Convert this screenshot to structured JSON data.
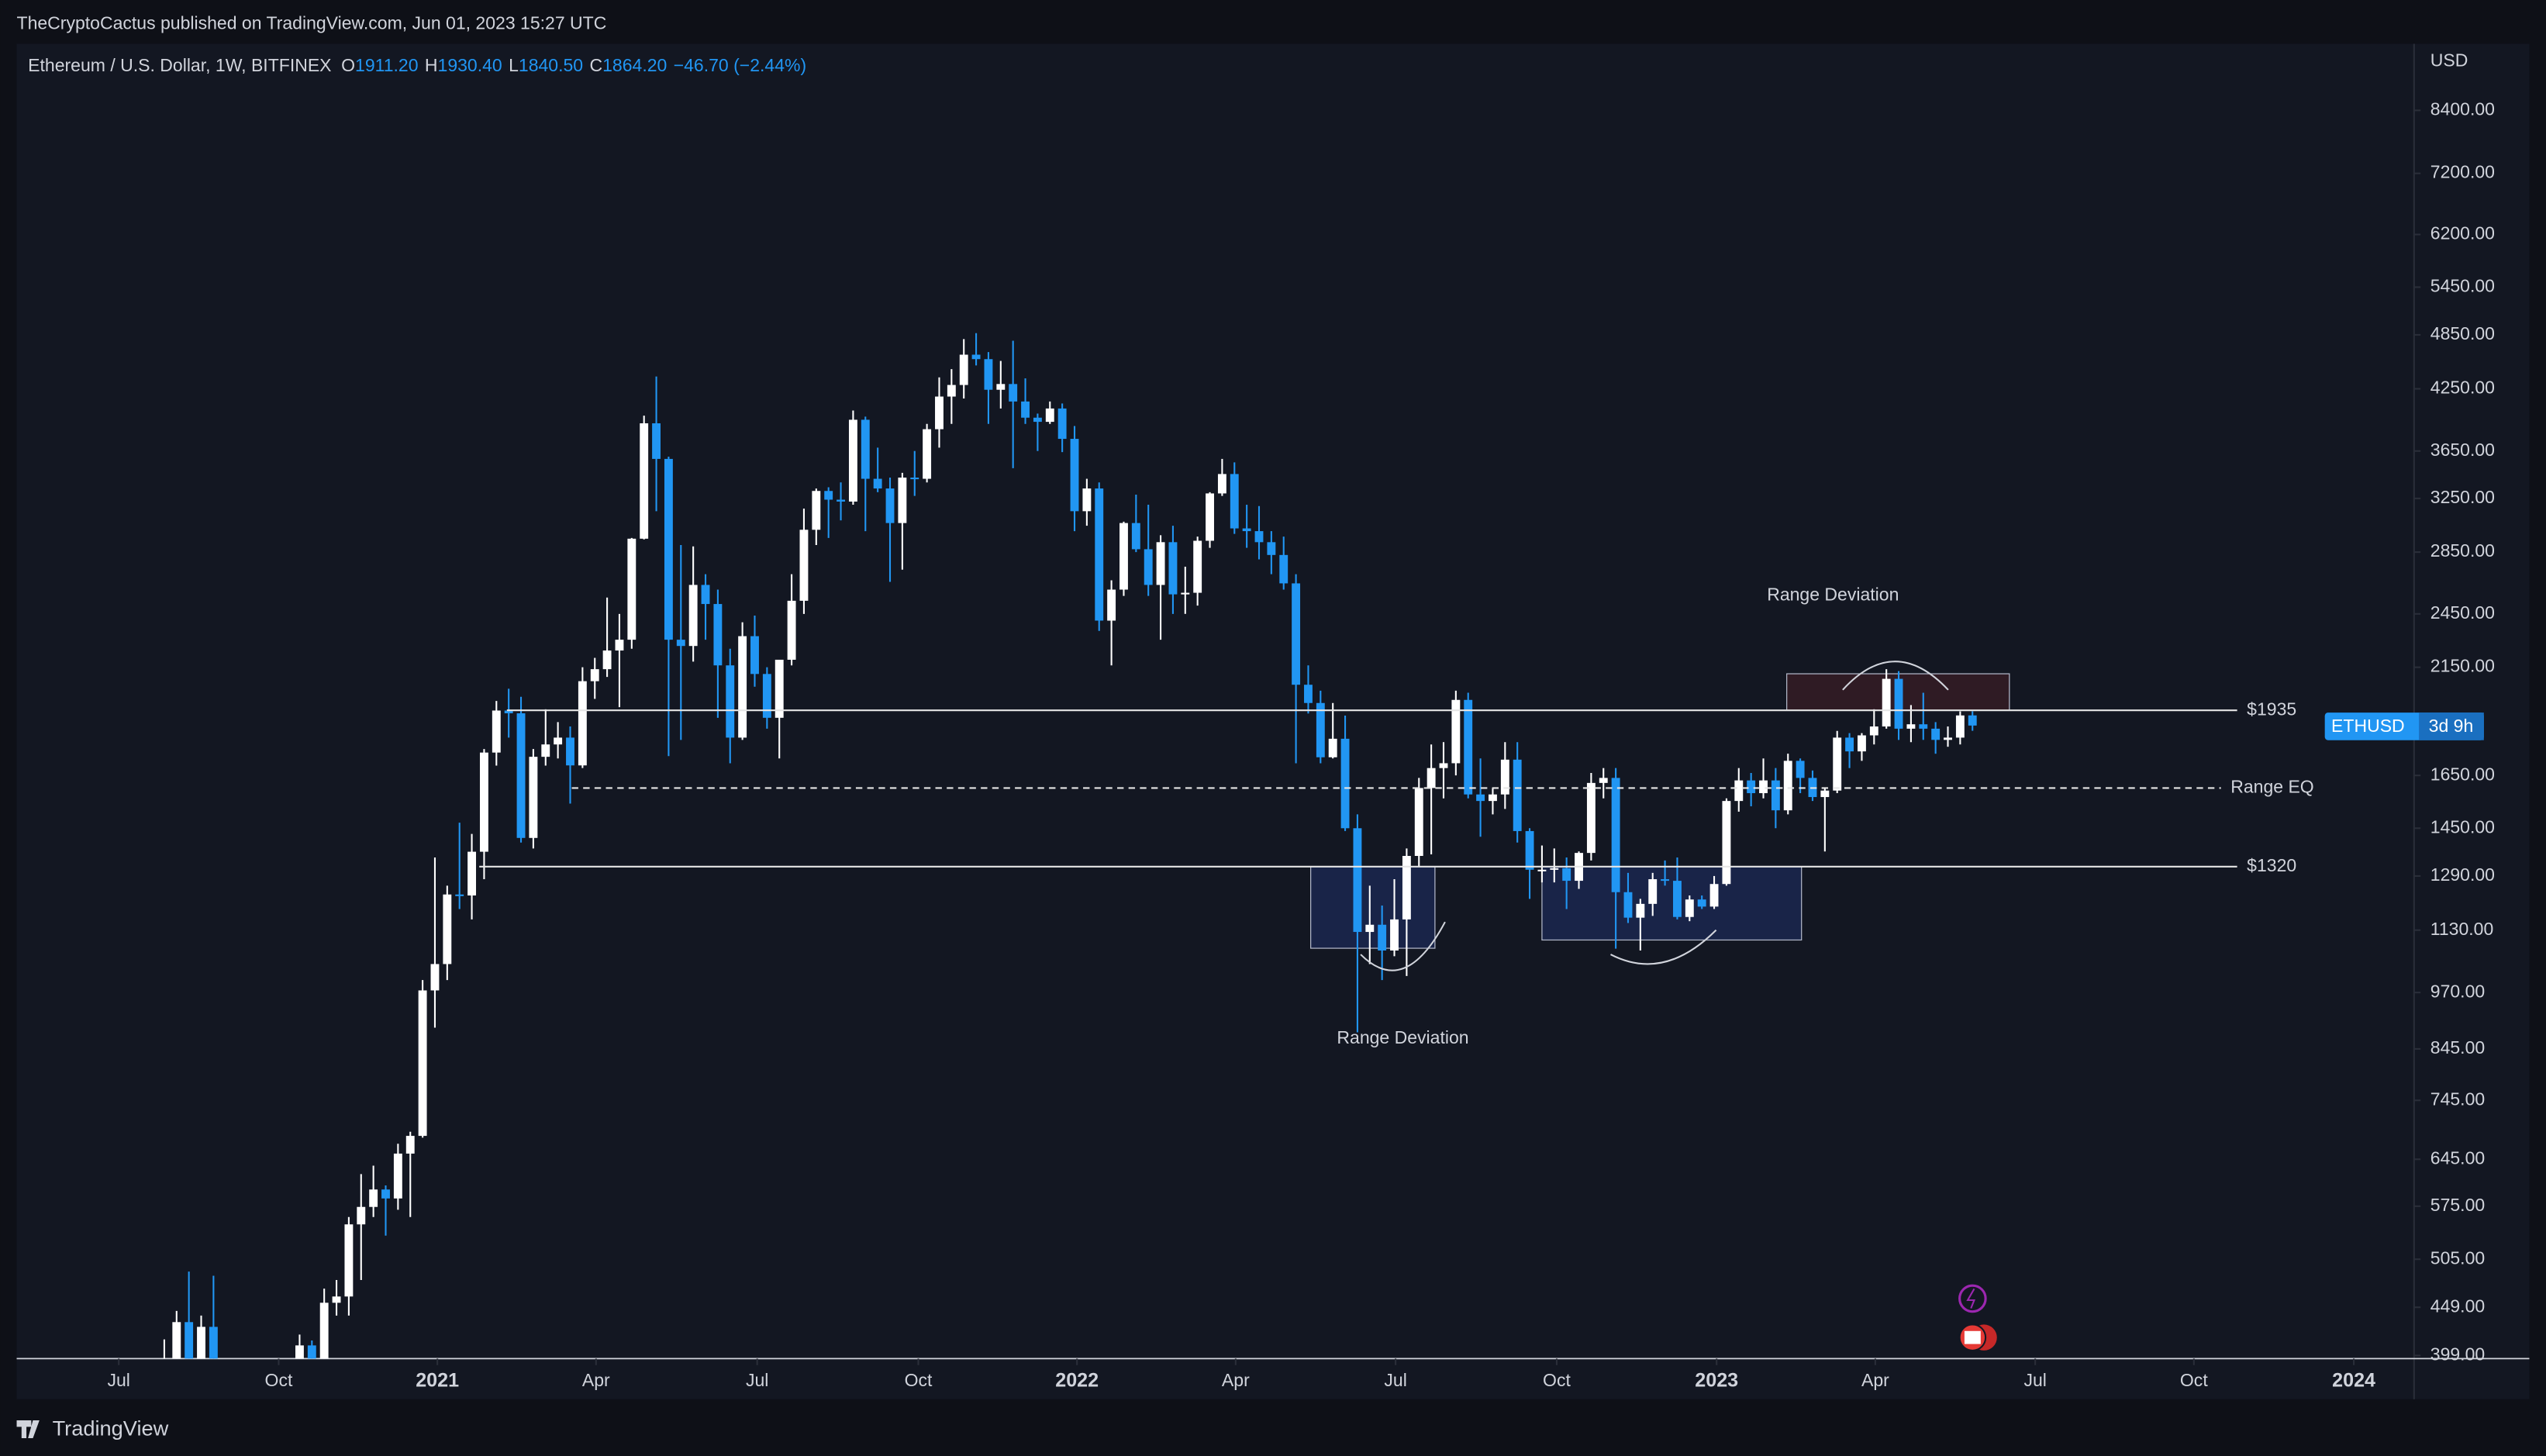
{
  "header": {
    "attribution": "TheCryptoCactus published on TradingView.com, Jun 01, 2023 15:27 UTC",
    "symbol": "Ethereum / U.S. Dollar, 1W, BITFINEX",
    "ohlc": [
      {
        "label": "O",
        "value": "1911.20"
      },
      {
        "label": "H",
        "value": "1930.40"
      },
      {
        "label": "L",
        "value": "1840.50"
      },
      {
        "label": "C",
        "value": "1864.20"
      }
    ],
    "change": "−46.70 (−2.44%)"
  },
  "chart_data": {
    "type": "candlestick",
    "currency": "USD",
    "up_color": "#ffffff",
    "down_color": "#2196f3",
    "log_scale": true,
    "xlim": [
      -12,
      182.9
    ],
    "ylim": [
      396,
      9886
    ],
    "xticks": [
      {
        "value": -3.7,
        "label": "Jul"
      },
      {
        "value": 9.3,
        "label": "Oct"
      },
      {
        "value": 22.2,
        "label": "2021"
      },
      {
        "value": 35.1,
        "label": "Apr"
      },
      {
        "value": 48.2,
        "label": "Jul"
      },
      {
        "value": 61.3,
        "label": "Oct"
      },
      {
        "value": 74.2,
        "label": "2022"
      },
      {
        "value": 87.1,
        "label": "Apr"
      },
      {
        "value": 100.1,
        "label": "Jul"
      },
      {
        "value": 113.2,
        "label": "Oct"
      },
      {
        "value": 126.2,
        "label": "2023"
      },
      {
        "value": 139.1,
        "label": "Apr"
      },
      {
        "value": 152.1,
        "label": "Jul"
      },
      {
        "value": 165.0,
        "label": "Oct"
      },
      {
        "value": 178.0,
        "label": "2024"
      }
    ],
    "yticks": [
      {
        "value": 8400,
        "label": "8400.00"
      },
      {
        "value": 7200,
        "label": "7200.00"
      },
      {
        "value": 6200,
        "label": "6200.00"
      },
      {
        "value": 5450,
        "label": "5450.00"
      },
      {
        "value": 4850,
        "label": "4850.00"
      },
      {
        "value": 4250,
        "label": "4250.00"
      },
      {
        "value": 3650,
        "label": "3650.00"
      },
      {
        "value": 3250,
        "label": "3250.00"
      },
      {
        "value": 2850,
        "label": "2850.00"
      },
      {
        "value": 2450,
        "label": "2450.00"
      },
      {
        "value": 2150,
        "label": "2150.00"
      },
      {
        "value": 1650,
        "label": "1650.00"
      },
      {
        "value": 1450,
        "label": "1450.00"
      },
      {
        "value": 1290,
        "label": "1290.00"
      },
      {
        "value": 1130,
        "label": "1130.00"
      },
      {
        "value": 970,
        "label": "970.00"
      },
      {
        "value": 845,
        "label": "845.00"
      },
      {
        "value": 745,
        "label": "745.00"
      },
      {
        "value": 645,
        "label": "645.00"
      },
      {
        "value": 575,
        "label": "575.00"
      },
      {
        "value": 505,
        "label": "505.00"
      },
      {
        "value": 449,
        "label": "449.00"
      },
      {
        "value": 399,
        "label": "399.00"
      }
    ],
    "x": [
      0,
      1,
      2,
      3,
      4,
      5,
      6,
      7,
      8,
      9,
      10,
      11,
      12,
      13,
      14,
      15,
      16,
      17,
      18,
      19,
      20,
      21,
      22,
      23,
      24,
      25,
      26,
      27,
      28,
      29,
      30,
      31,
      32,
      33,
      34,
      35,
      36,
      37,
      38,
      39,
      40,
      41,
      42,
      43,
      44,
      45,
      46,
      47,
      48,
      49,
      50,
      51,
      52,
      53,
      54,
      55,
      56,
      57,
      58,
      59,
      60,
      61,
      62,
      63,
      64,
      65,
      66,
      67,
      68,
      69,
      70,
      71,
      72,
      73,
      74,
      75,
      76,
      77,
      78,
      79,
      80,
      81,
      82,
      83,
      84,
      85,
      86,
      87,
      88,
      89,
      90,
      91,
      92,
      93,
      94,
      95,
      96,
      97,
      98,
      99,
      100,
      101,
      102,
      103,
      104,
      105,
      106,
      107,
      108,
      109,
      110,
      111,
      112,
      113,
      114,
      115,
      116,
      117,
      118,
      119,
      120,
      121,
      122,
      123,
      124,
      125,
      126,
      127,
      128,
      129,
      130,
      131,
      132,
      133,
      134,
      135,
      136,
      137,
      138,
      139,
      140,
      141,
      142,
      143,
      144,
      145,
      146,
      147
    ],
    "ohlc": [
      [
        386,
        415,
        365,
        395
      ],
      [
        395,
        445,
        370,
        433
      ],
      [
        433,
        490,
        375,
        387
      ],
      [
        387,
        440,
        370,
        428
      ],
      [
        428,
        485,
        310,
        353
      ],
      [
        353,
        385,
        330,
        365
      ],
      [
        365,
        395,
        355,
        384
      ],
      [
        384,
        392,
        310,
        354
      ],
      [
        354,
        362,
        335,
        353
      ],
      [
        353,
        375,
        332,
        369
      ],
      [
        369,
        395,
        360,
        367
      ],
      [
        367,
        420,
        363,
        409
      ],
      [
        409,
        414,
        370,
        387
      ],
      [
        387,
        470,
        374,
        454
      ],
      [
        454,
        480,
        440,
        461
      ],
      [
        461,
        560,
        440,
        550
      ],
      [
        550,
        622,
        480,
        574
      ],
      [
        574,
        635,
        560,
        599
      ],
      [
        599,
        605,
        535,
        586
      ],
      [
        586,
        670,
        570,
        654
      ],
      [
        654,
        690,
        560,
        683
      ],
      [
        683,
        1000,
        680,
        975
      ],
      [
        975,
        1350,
        890,
        1040
      ],
      [
        1040,
        1260,
        1000,
        1233
      ],
      [
        1233,
        1470,
        1190,
        1230
      ],
      [
        1230,
        1430,
        1160,
        1369
      ],
      [
        1369,
        1760,
        1280,
        1745
      ],
      [
        1745,
        1980,
        1690,
        1934
      ],
      [
        1934,
        2040,
        1810,
        1921
      ],
      [
        1921,
        2000,
        1400,
        1416
      ],
      [
        1416,
        1760,
        1380,
        1727
      ],
      [
        1727,
        1940,
        1690,
        1780
      ],
      [
        1780,
        1880,
        1720,
        1810
      ],
      [
        1810,
        1860,
        1540,
        1691
      ],
      [
        1691,
        2150,
        1680,
        2078
      ],
      [
        2078,
        2200,
        1990,
        2140
      ],
      [
        2140,
        2550,
        2100,
        2240
      ],
      [
        2240,
        2450,
        1950,
        2300
      ],
      [
        2300,
        2950,
        2250,
        2945
      ],
      [
        2945,
        3980,
        2940,
        3906
      ],
      [
        3906,
        4380,
        3150,
        3580
      ],
      [
        3580,
        3600,
        1730,
        2300
      ],
      [
        2300,
        2900,
        1800,
        2265
      ],
      [
        2265,
        2890,
        2180,
        2630
      ],
      [
        2630,
        2700,
        2300,
        2510
      ],
      [
        2510,
        2600,
        1900,
        2160
      ],
      [
        2160,
        2250,
        1700,
        1810
      ],
      [
        1810,
        2400,
        1800,
        2320
      ],
      [
        2320,
        2440,
        2050,
        2115
      ],
      [
        2115,
        2150,
        1850,
        1900
      ],
      [
        1900,
        2190,
        1720,
        2190
      ],
      [
        2190,
        2700,
        2160,
        2530
      ],
      [
        2530,
        3170,
        2450,
        3010
      ],
      [
        3010,
        3330,
        2900,
        3310
      ],
      [
        3310,
        3340,
        2950,
        3240
      ],
      [
        3240,
        3380,
        3080,
        3225
      ],
      [
        3225,
        4030,
        3200,
        3940
      ],
      [
        3940,
        3970,
        3000,
        3410
      ],
      [
        3410,
        3680,
        3300,
        3330
      ],
      [
        3330,
        3420,
        2650,
        3060
      ],
      [
        3060,
        3460,
        2730,
        3420
      ],
      [
        3420,
        3650,
        3270,
        3410
      ],
      [
        3410,
        3900,
        3380,
        3850
      ],
      [
        3850,
        4370,
        3680,
        4170
      ],
      [
        4170,
        4460,
        3900,
        4290
      ],
      [
        4290,
        4800,
        4150,
        4620
      ],
      [
        4620,
        4870,
        4500,
        4570
      ],
      [
        4570,
        4650,
        3900,
        4240
      ],
      [
        4240,
        4550,
        4050,
        4300
      ],
      [
        4300,
        4780,
        3500,
        4120
      ],
      [
        4120,
        4360,
        3900,
        3960
      ],
      [
        3960,
        4000,
        3650,
        3920
      ],
      [
        3920,
        4120,
        3900,
        4050
      ],
      [
        4050,
        4100,
        3640,
        3760
      ],
      [
        3760,
        3880,
        3000,
        3150
      ],
      [
        3150,
        3410,
        3040,
        3330
      ],
      [
        3330,
        3380,
        2350,
        2410
      ],
      [
        2410,
        2660,
        2160,
        2600
      ],
      [
        2600,
        3070,
        2560,
        3060
      ],
      [
        3060,
        3280,
        2850,
        2870
      ],
      [
        2870,
        3200,
        2560,
        2630
      ],
      [
        2630,
        2970,
        2300,
        2920
      ],
      [
        2920,
        3040,
        2450,
        2570
      ],
      [
        2570,
        2750,
        2450,
        2580
      ],
      [
        2580,
        2960,
        2500,
        2930
      ],
      [
        2930,
        3300,
        2880,
        3290
      ],
      [
        3290,
        3580,
        3270,
        3450
      ],
      [
        3450,
        3550,
        2980,
        3020
      ],
      [
        3020,
        3200,
        2880,
        3000
      ],
      [
        3000,
        3190,
        2800,
        2920
      ],
      [
        2920,
        3000,
        2700,
        2830
      ],
      [
        2830,
        2960,
        2600,
        2640
      ],
      [
        2640,
        2700,
        1700,
        2060
      ],
      [
        2060,
        2160,
        1920,
        1970
      ],
      [
        1970,
        2030,
        1700,
        1725
      ],
      [
        1725,
        1970,
        1720,
        1805
      ],
      [
        1805,
        1910,
        1440,
        1450
      ],
      [
        1450,
        1500,
        880,
        1125
      ],
      [
        1125,
        1260,
        1040,
        1145
      ],
      [
        1145,
        1200,
        1000,
        1075
      ],
      [
        1075,
        1280,
        1060,
        1160
      ],
      [
        1160,
        1380,
        1010,
        1355
      ],
      [
        1355,
        1640,
        1320,
        1600
      ],
      [
        1600,
        1780,
        1360,
        1680
      ],
      [
        1680,
        1790,
        1560,
        1700
      ],
      [
        1700,
        2030,
        1650,
        1985
      ],
      [
        1985,
        2020,
        1560,
        1575
      ],
      [
        1575,
        1720,
        1420,
        1550
      ],
      [
        1550,
        1600,
        1500,
        1575
      ],
      [
        1575,
        1790,
        1520,
        1715
      ],
      [
        1715,
        1790,
        1400,
        1440
      ],
      [
        1440,
        1450,
        1220,
        1310
      ],
      [
        1310,
        1390,
        1270,
        1310
      ],
      [
        1310,
        1380,
        1270,
        1315
      ],
      [
        1315,
        1350,
        1190,
        1275
      ],
      [
        1275,
        1370,
        1250,
        1365
      ],
      [
        1365,
        1660,
        1340,
        1620
      ],
      [
        1620,
        1680,
        1560,
        1640
      ],
      [
        1640,
        1680,
        1080,
        1240
      ],
      [
        1240,
        1300,
        1150,
        1165
      ],
      [
        1165,
        1220,
        1075,
        1205
      ],
      [
        1205,
        1300,
        1170,
        1280
      ],
      [
        1280,
        1340,
        1260,
        1275
      ],
      [
        1275,
        1350,
        1160,
        1167
      ],
      [
        1167,
        1230,
        1155,
        1218
      ],
      [
        1218,
        1230,
        1190,
        1197
      ],
      [
        1197,
        1290,
        1190,
        1265
      ],
      [
        1265,
        1560,
        1260,
        1550
      ],
      [
        1550,
        1680,
        1510,
        1630
      ],
      [
        1630,
        1660,
        1530,
        1580
      ],
      [
        1580,
        1720,
        1560,
        1630
      ],
      [
        1630,
        1680,
        1450,
        1515
      ],
      [
        1515,
        1740,
        1500,
        1710
      ],
      [
        1710,
        1720,
        1580,
        1640
      ],
      [
        1640,
        1670,
        1550,
        1565
      ],
      [
        1565,
        1600,
        1370,
        1590
      ],
      [
        1590,
        1840,
        1580,
        1810
      ],
      [
        1810,
        1830,
        1680,
        1750
      ],
      [
        1750,
        1830,
        1710,
        1820
      ],
      [
        1820,
        1940,
        1780,
        1860
      ],
      [
        1860,
        2140,
        1850,
        2090
      ],
      [
        2090,
        2130,
        1800,
        1850
      ],
      [
        1850,
        1960,
        1790,
        1870
      ],
      [
        1870,
        2020,
        1800,
        1850
      ],
      [
        1850,
        1880,
        1740,
        1800
      ],
      [
        1800,
        1860,
        1770,
        1810
      ],
      [
        1810,
        1930,
        1780,
        1911
      ],
      [
        1911.2,
        1930.4,
        1840.5,
        1864.2
      ]
    ],
    "levels": [
      {
        "value": 1935,
        "label": "$1935",
        "style": "solid"
      },
      {
        "value": 1600,
        "label": "Range EQ",
        "style": "dashed"
      },
      {
        "value": 1320,
        "label": "$1320",
        "style": "solid"
      }
    ],
    "zones": [
      {
        "xlim": [
          93.2,
          103.3
        ],
        "ylim": [
          1081,
          1320
        ],
        "color": "#1c2a55"
      },
      {
        "xlim": [
          112.0,
          133.1
        ],
        "ylim": [
          1103,
          1320
        ],
        "color": "#1c2a55"
      },
      {
        "xlim": [
          131.9,
          150.0
        ],
        "ylim": [
          1935,
          2116
        ],
        "color": "#3a1e26"
      }
    ],
    "annotations": [
      "Range Deviation",
      "Range Deviation"
    ],
    "price_tag": {
      "symbol": "ETHUSD",
      "countdown": "3d 9h"
    }
  },
  "footer": {
    "brand": "TradingView"
  }
}
